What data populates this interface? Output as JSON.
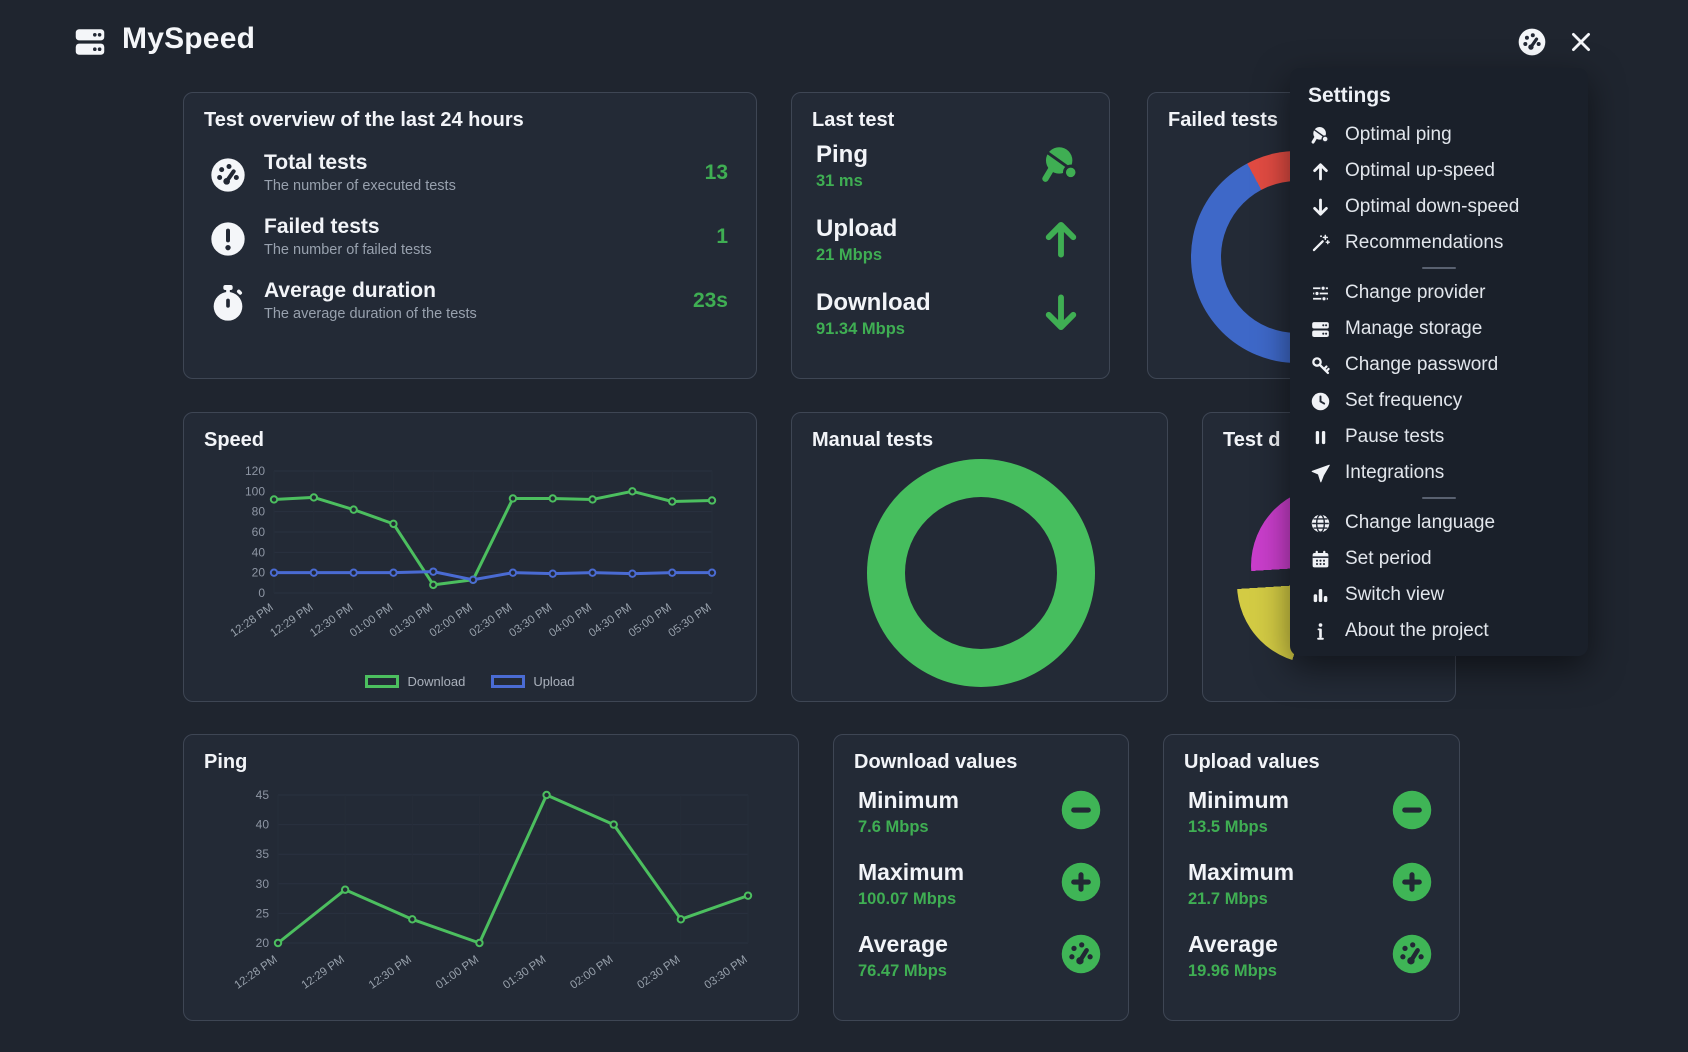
{
  "app": {
    "title": "MySpeed"
  },
  "header": {
    "logo_icon": "server-icon",
    "speedtest_icon": "gauge-icon",
    "close_icon": "close-icon"
  },
  "colors": {
    "accent_green": "#3fae53",
    "chart_green": "#4cbf5f",
    "chart_blue": "#4a6bd3",
    "fail_red": "#e14b42",
    "donut_blue": "#3e68c8",
    "pie_magenta": "#c93ecb",
    "pie_yellow": "#d3cb44",
    "pie_green": "#3fb54a"
  },
  "cards": {
    "overview": {
      "title": "Test overview of the last 24 hours",
      "rows": [
        {
          "icon": "gauge-icon",
          "label": "Total tests",
          "sub": "The number of executed tests",
          "value": "13"
        },
        {
          "icon": "exclamation-icon",
          "label": "Failed tests",
          "sub": "The number of failed tests",
          "value": "1"
        },
        {
          "icon": "stopwatch-icon",
          "label": "Average duration",
          "sub": "The average duration of the tests",
          "value": "23s"
        }
      ]
    },
    "last_test": {
      "title": "Last test",
      "rows": [
        {
          "label": "Ping",
          "value": "31 ms",
          "icon": "table-tennis-icon"
        },
        {
          "label": "Upload",
          "value": "21 Mbps",
          "icon": "arrow-up-icon"
        },
        {
          "label": "Download",
          "value": "91.34 Mbps",
          "icon": "arrow-down-icon"
        }
      ]
    },
    "failed_tests": {
      "title": "Failed tests",
      "chart_data": {
        "type": "pie",
        "donut": true,
        "start_deg": -28,
        "slices": [
          {
            "value": 1,
            "color": "#e14b42"
          },
          {
            "value": 12,
            "color": "#3e68c8"
          }
        ]
      }
    },
    "speed": {
      "title": "Speed",
      "chart_data": {
        "type": "line",
        "categories": [
          "12:28 PM",
          "12:29 PM",
          "12:30 PM",
          "01:00 PM",
          "01:30 PM",
          "02:00 PM",
          "02:30 PM",
          "03:30 PM",
          "04:00 PM",
          "04:30 PM",
          "05:00 PM",
          "05:30 PM"
        ],
        "series": [
          {
            "name": "Download",
            "color": "#4cbf5f",
            "values": [
              92,
              94,
              82,
              68,
              8,
              13,
              93,
              93,
              92,
              100,
              90,
              91
            ]
          },
          {
            "name": "Upload",
            "color": "#4a6bd3",
            "values": [
              20,
              20,
              20,
              20,
              21,
              13,
              20,
              19,
              20,
              19,
              20,
              20
            ]
          }
        ],
        "ylim": [
          0,
          120
        ],
        "yticks": [
          0,
          20,
          40,
          60,
          80,
          100,
          120
        ],
        "legend_position": "bottom",
        "grid": true
      }
    },
    "manual_tests": {
      "title": "Manual tests",
      "chart_data": {
        "type": "pie",
        "donut": true,
        "start_deg": 0,
        "slices": [
          {
            "value": 1,
            "color": "#46be5e"
          }
        ]
      }
    },
    "test_duration": {
      "title": "Test d",
      "chart_data": {
        "type": "pie",
        "donut": false,
        "start_deg": 0,
        "slices": [
          {
            "value": 55,
            "color": "#3fb54a"
          },
          {
            "value": 19,
            "color": "#d3cb44",
            "exploded": true
          },
          {
            "value": 18,
            "color": "#c93ecb"
          },
          {
            "value": 8,
            "color": "#3fb54a"
          }
        ]
      }
    },
    "ping": {
      "title": "Ping",
      "chart_data": {
        "type": "line",
        "categories": [
          "12:28 PM",
          "12:29 PM",
          "12:30 PM",
          "01:00 PM",
          "01:30 PM",
          "02:00 PM",
          "02:30 PM",
          "03:30 PM"
        ],
        "series": [
          {
            "name": "Ping",
            "color": "#4cbf5f",
            "values": [
              20,
              29,
              24,
              20,
              45,
              40,
              24,
              28
            ]
          }
        ],
        "ylim": [
          20,
          45
        ],
        "yticks": [
          20,
          25,
          30,
          35,
          40,
          45
        ],
        "legend_position": "none",
        "grid": true
      }
    },
    "download_values": {
      "title": "Download values",
      "rows": [
        {
          "label": "Minimum",
          "value": "7.6 Mbps",
          "icon": "minus-circle-icon"
        },
        {
          "label": "Maximum",
          "value": "100.07 Mbps",
          "icon": "plus-circle-icon"
        },
        {
          "label": "Average",
          "value": "76.47 Mbps",
          "icon": "gauge-circle-icon"
        }
      ]
    },
    "upload_values": {
      "title": "Upload values",
      "rows": [
        {
          "label": "Minimum",
          "value": "13.5 Mbps",
          "icon": "minus-circle-icon"
        },
        {
          "label": "Maximum",
          "value": "21.7 Mbps",
          "icon": "plus-circle-icon"
        },
        {
          "label": "Average",
          "value": "19.96 Mbps",
          "icon": "gauge-circle-icon"
        }
      ]
    }
  },
  "settings_menu": {
    "title": "Settings",
    "groups": [
      [
        {
          "icon": "table-tennis-icon",
          "label": "Optimal ping"
        },
        {
          "icon": "arrow-up-icon",
          "label": "Optimal up-speed"
        },
        {
          "icon": "arrow-down-icon",
          "label": "Optimal down-speed"
        },
        {
          "icon": "magic-wand-icon",
          "label": "Recommendations"
        }
      ],
      [
        {
          "icon": "sliders-icon",
          "label": "Change provider"
        },
        {
          "icon": "server-icon",
          "label": "Manage storage"
        },
        {
          "icon": "key-icon",
          "label": "Change password"
        },
        {
          "icon": "clock-icon",
          "label": "Set frequency"
        },
        {
          "icon": "pause-icon",
          "label": "Pause tests"
        },
        {
          "icon": "send-icon",
          "label": "Integrations"
        }
      ],
      [
        {
          "icon": "globe-icon",
          "label": "Change language"
        },
        {
          "icon": "calendar-icon",
          "label": "Set period"
        },
        {
          "icon": "bar-chart-icon",
          "label": "Switch view"
        },
        {
          "icon": "info-icon",
          "label": "About the project"
        }
      ]
    ]
  }
}
